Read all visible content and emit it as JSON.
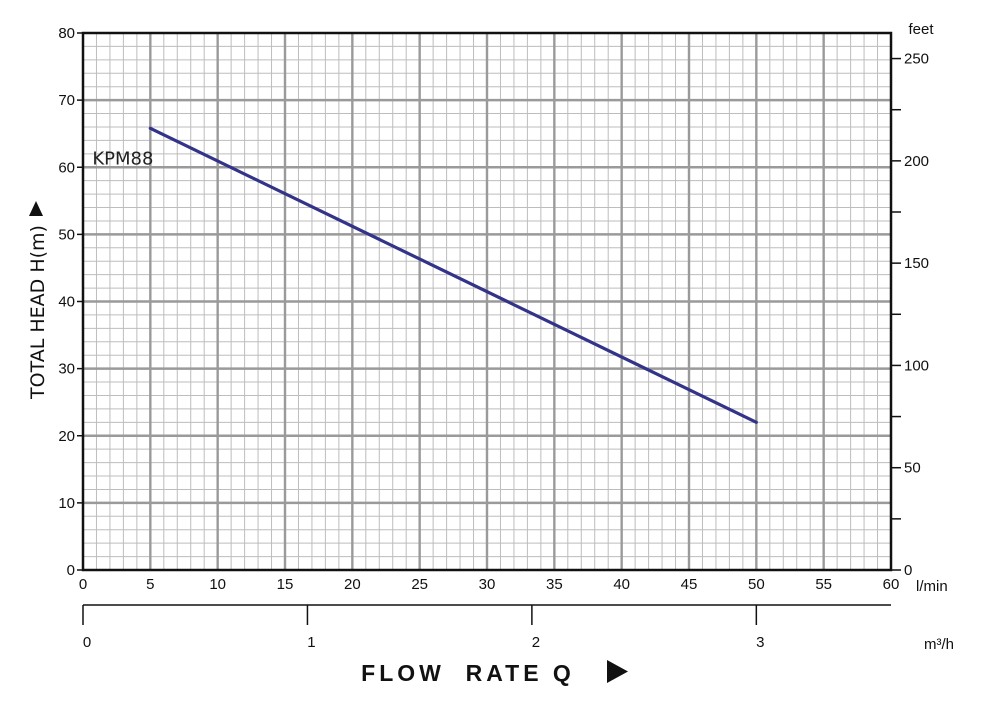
{
  "chart_data": {
    "type": "line",
    "title": "",
    "xlabel": "FLOW  RATE Q",
    "ylabel": "TOTAL HEAD H(m)",
    "x_unit": "l/min",
    "xlim": [
      0,
      60
    ],
    "ylim": [
      0,
      80
    ],
    "x_ticks": [
      "0",
      "5",
      "10",
      "15",
      "20",
      "25",
      "30",
      "35",
      "40",
      "45",
      "50",
      "55",
      "60"
    ],
    "y_ticks": [
      "0",
      "10",
      "20",
      "30",
      "40",
      "50",
      "60",
      "70",
      "80"
    ],
    "secondary_y": {
      "unit": "feet",
      "ticks": [
        "0",
        "50",
        "100",
        "150",
        "200",
        "250"
      ],
      "ylim": [
        0,
        262.5
      ]
    },
    "secondary_x": {
      "unit": "m³/h",
      "ticks": [
        "0",
        "1",
        "2",
        "3"
      ],
      "xlim": [
        0,
        3.6
      ]
    },
    "grid": true,
    "series": [
      {
        "name": "KPM88",
        "x": [
          5,
          50
        ],
        "y": [
          65.8,
          22
        ]
      }
    ],
    "colors": {
      "series": "#33338a",
      "grid_major": "#9a9a9a",
      "grid_minor": "#bdbdbd",
      "axis": "#111111"
    }
  }
}
